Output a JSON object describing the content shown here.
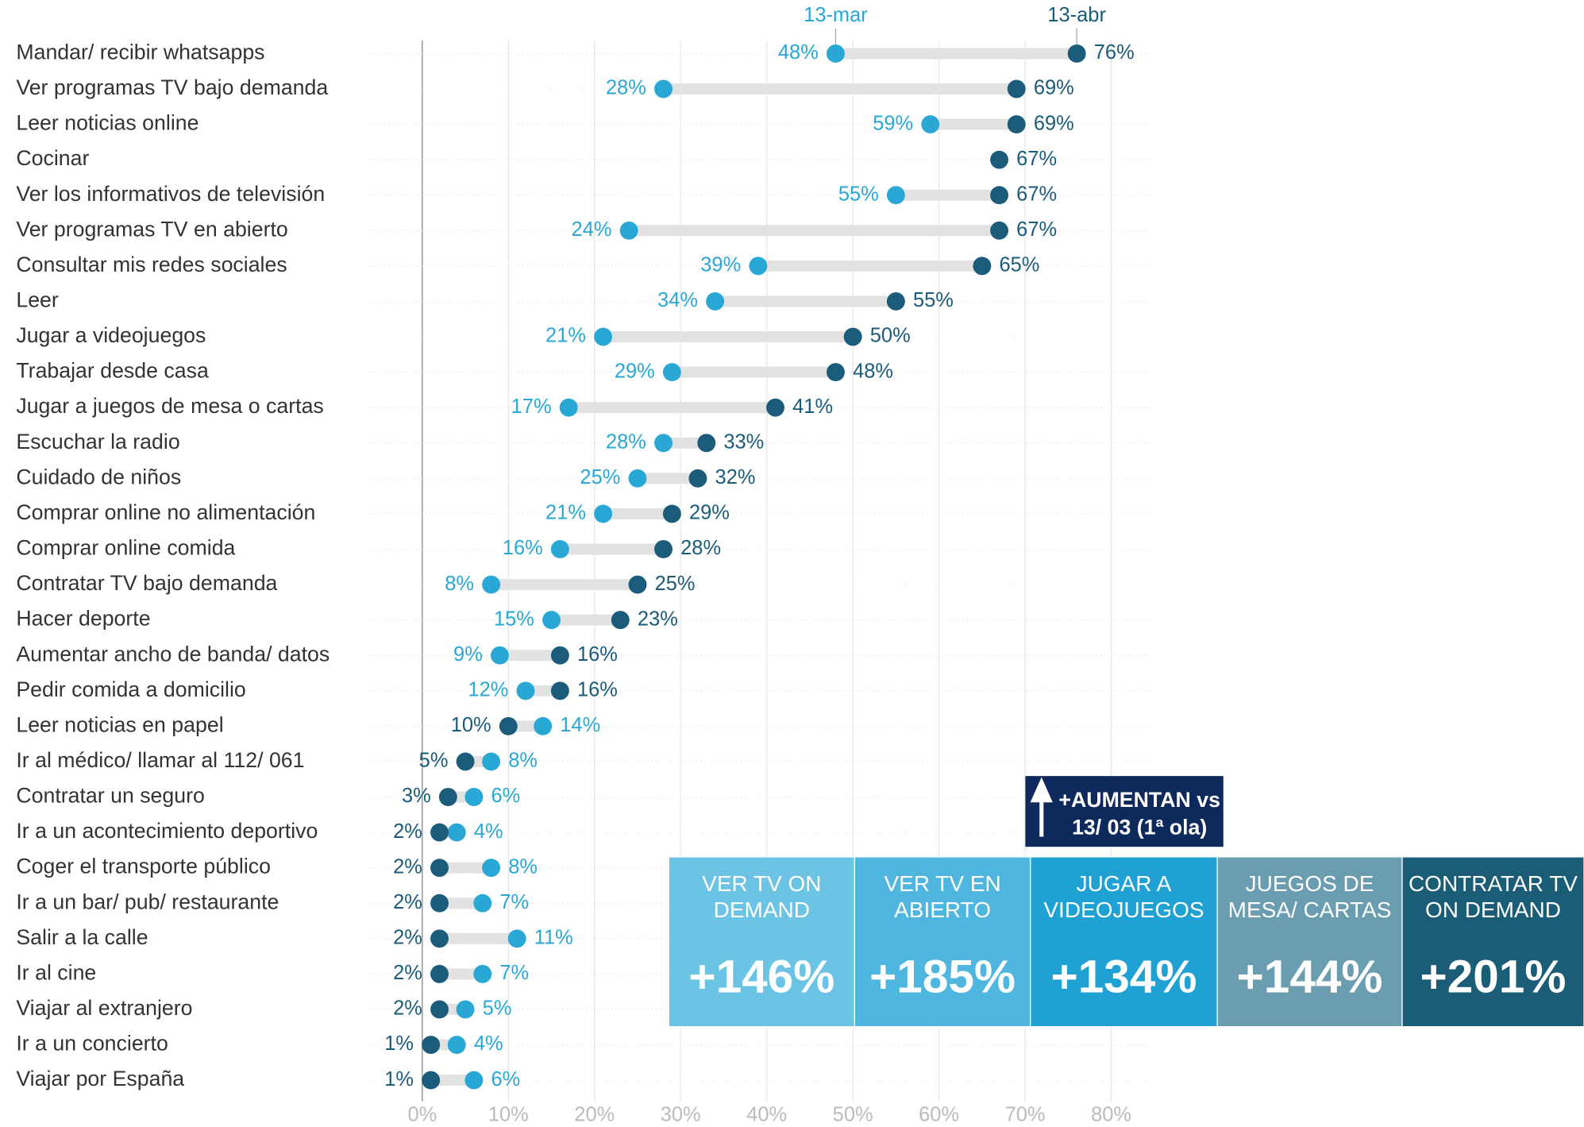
{
  "chart_data": {
    "type": "dumbbell",
    "categories": [
      "Mandar/ recibir whatsapps",
      "Ver programas TV bajo demanda",
      "Leer noticias online",
      "Cocinar",
      "Ver los informativos de televisión",
      "Ver programas TV en abierto",
      "Consultar mis redes sociales",
      "Leer",
      "Jugar a videojuegos",
      "Trabajar desde casa",
      "Jugar a juegos de mesa o cartas",
      "Escuchar la radio",
      "Cuidado de niños",
      "Comprar online no alimentación",
      "Comprar online comida",
      "Contratar TV bajo demanda",
      "Hacer deporte",
      "Aumentar ancho de banda/ datos",
      "Pedir comida a domicilio",
      "Leer noticias en papel",
      "Ir al médico/ llamar al 112/ 061",
      "Contratar un seguro",
      "Ir a un acontecimiento deportivo",
      "Coger el transporte público",
      "Ir a un bar/ pub/ restaurante",
      "Salir a la calle",
      "Ir al cine",
      "Viajar al extranjero",
      "Ir a un concierto",
      "Viajar por España"
    ],
    "series": [
      {
        "name": "13-mar",
        "color": "#29a8d6",
        "values": [
          48,
          28,
          59,
          null,
          55,
          24,
          39,
          34,
          21,
          29,
          17,
          28,
          25,
          21,
          16,
          8,
          15,
          9,
          12,
          14,
          8,
          6,
          4,
          8,
          7,
          11,
          7,
          5,
          4,
          6
        ],
        "value_labels": [
          "48%",
          "28%",
          "59%",
          null,
          "55%",
          "24%",
          "39%",
          "34%",
          "21%",
          "29%",
          "17%",
          "28%",
          "25%",
          "21%",
          "16%",
          "8%",
          "15%",
          "9%",
          "12%",
          "14%",
          "8%",
          "6%",
          "4%",
          "8%",
          "7%",
          "11%",
          "7%",
          "5%",
          "4%",
          "6%"
        ]
      },
      {
        "name": "13-abr",
        "color": "#1b5c7a",
        "values": [
          76,
          69,
          69,
          67,
          67,
          67,
          65,
          55,
          50,
          48,
          41,
          33,
          32,
          29,
          28,
          25,
          23,
          16,
          16,
          10,
          5,
          3,
          2,
          2,
          2,
          2,
          2,
          2,
          1,
          1
        ],
        "value_labels": [
          "76%",
          "69%",
          "69%",
          "67%",
          "67%",
          "67%",
          "65%",
          "55%",
          "50%",
          "48%",
          "41%",
          "33%",
          "32%",
          "29%",
          "28%",
          "25%",
          "23%",
          "16%",
          "16%",
          "10%",
          "5%",
          "3%",
          "2%",
          "2%",
          "2%",
          "2%",
          "2%",
          "2%",
          "1%",
          "1%"
        ]
      }
    ],
    "xlim": [
      0,
      80
    ],
    "xticks": [
      {
        "value": 0,
        "label": "0%"
      },
      {
        "value": 10,
        "label": "10%"
      },
      {
        "value": 20,
        "label": "20%"
      },
      {
        "value": 30,
        "label": "30%"
      },
      {
        "value": 40,
        "label": "40%"
      },
      {
        "value": 50,
        "label": "50%"
      },
      {
        "value": 60,
        "label": "60%"
      },
      {
        "value": 70,
        "label": "70%"
      },
      {
        "value": 80,
        "label": "80%"
      }
    ],
    "grid": true,
    "callout": {
      "lines": [
        "+AUMENTAN  vs",
        "13/ 03 (1ª ola)"
      ],
      "tiles": [
        {
          "label": [
            "VER TV ON",
            "DEMAND"
          ],
          "value": "+146%",
          "color": "#6cc4e4"
        },
        {
          "label": [
            "VER TV EN",
            "ABIERTO"
          ],
          "value": "+185%",
          "color": "#4fb6df"
        },
        {
          "label": [
            "JUGAR A",
            "VIDEOJUEGOS"
          ],
          "value": "+134%",
          "color": "#20a1d3"
        },
        {
          "label": [
            "JUEGOS DE",
            "MESA/ CARTAS"
          ],
          "value": "+144%",
          "color": "#6a9db0"
        },
        {
          "label": [
            "CONTRATAR TV",
            "ON DEMAND"
          ],
          "value": "+201%",
          "color": "#1b5c77"
        }
      ]
    }
  }
}
